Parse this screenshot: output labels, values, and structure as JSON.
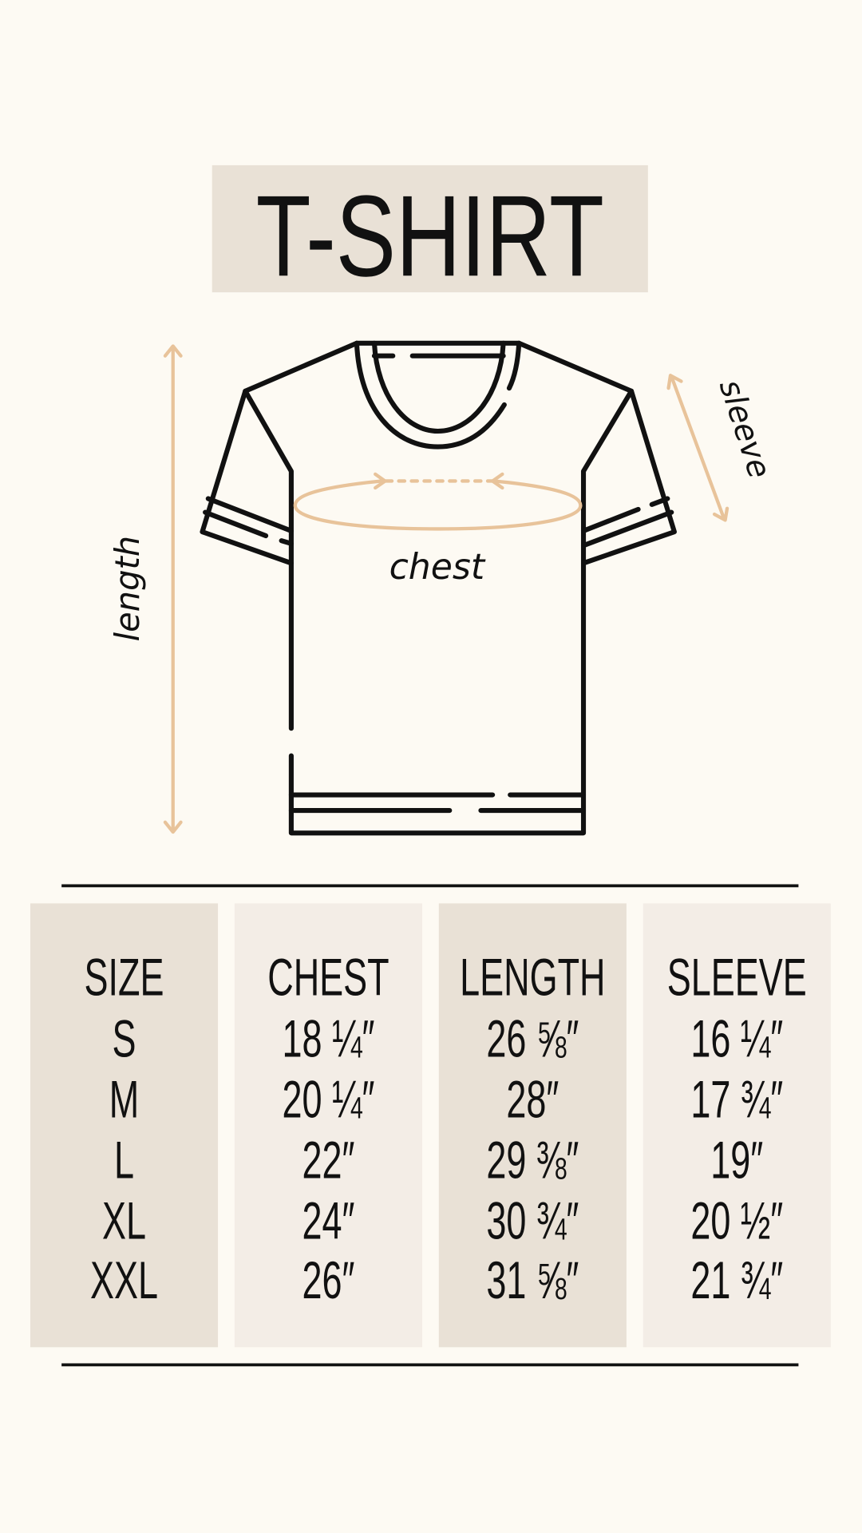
{
  "title": "T-SHIRT",
  "labels": {
    "length": "length",
    "sleeve": "sleeve",
    "chest": "chest"
  },
  "colors": {
    "background": "#fdfaf3",
    "title_box": "#e9e1d6",
    "column_dark": "#e9e1d6",
    "column_light": "#f3ede6",
    "measure_arrow": "#e8c39a",
    "ink": "#111111"
  },
  "icons": {
    "illustration": "t-shirt-outline-icon",
    "arrows": "double-arrow-icon"
  },
  "table": {
    "columns": [
      {
        "header": "SIZE",
        "values": [
          "S",
          "M",
          "L",
          "XL",
          "XXL"
        ]
      },
      {
        "header": "CHEST",
        "values": [
          "18 ¼″",
          "20 ¼″",
          "22″",
          "24″",
          "26″"
        ]
      },
      {
        "header": "LENGTH",
        "values": [
          "26 ⅝″",
          "28″",
          "29 ⅜″",
          "30 ¾″",
          "31 ⅝″"
        ]
      },
      {
        "header": "SLEEVE",
        "values": [
          "16 ¼″",
          "17 ¾″",
          "19″",
          "20 ½″",
          "21 ¾″"
        ]
      }
    ]
  }
}
